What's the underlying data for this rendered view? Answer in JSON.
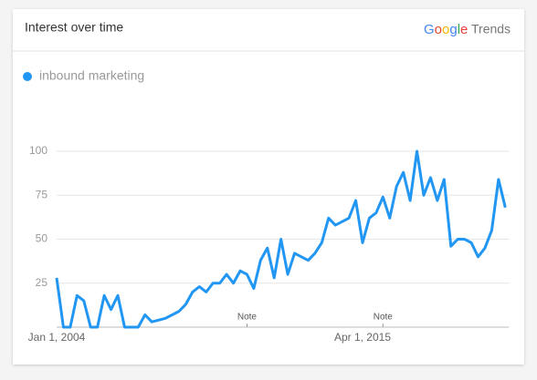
{
  "chart_data": {
    "type": "line",
    "title": "Interest over time",
    "brand": "Google",
    "brand_suffix": "Trends",
    "categories": [
      "Jan 1, 2004",
      null,
      null,
      null,
      null,
      null,
      null,
      null,
      null,
      null,
      null,
      null,
      null,
      null,
      null,
      null,
      null,
      null,
      null,
      null,
      null,
      null,
      null,
      null,
      null,
      null,
      null,
      null,
      null,
      null,
      null,
      null,
      null,
      null,
      null,
      null,
      null,
      null,
      null,
      null,
      null,
      null,
      null,
      null,
      null,
      "Apr 1, 2015",
      null,
      null,
      null,
      null,
      null,
      null,
      null,
      null,
      null,
      null,
      null,
      null,
      null,
      null,
      null,
      null,
      null,
      null,
      null,
      null,
      null
    ],
    "series": [
      {
        "name": "inbound marketing",
        "color": "#2196f3",
        "values": [
          28,
          0,
          0,
          18,
          15,
          0,
          0,
          18,
          10,
          18,
          0,
          0,
          0,
          7,
          3,
          4,
          5,
          7,
          9,
          13,
          20,
          23,
          20,
          25,
          25,
          30,
          25,
          32,
          30,
          22,
          38,
          45,
          28,
          50,
          30,
          42,
          40,
          38,
          42,
          48,
          62,
          58,
          60,
          62,
          72,
          48,
          62,
          65,
          74,
          62,
          80,
          88,
          72,
          100,
          75,
          85,
          72,
          84,
          46,
          50,
          50,
          48,
          40,
          45,
          55,
          84,
          68
        ]
      }
    ],
    "ylim": [
      0,
      100
    ],
    "yticks": [
      25,
      50,
      75,
      100
    ],
    "grid": true,
    "annotations": [
      {
        "text": "Note",
        "index": 28
      },
      {
        "text": "Note",
        "index": 48
      }
    ]
  }
}
